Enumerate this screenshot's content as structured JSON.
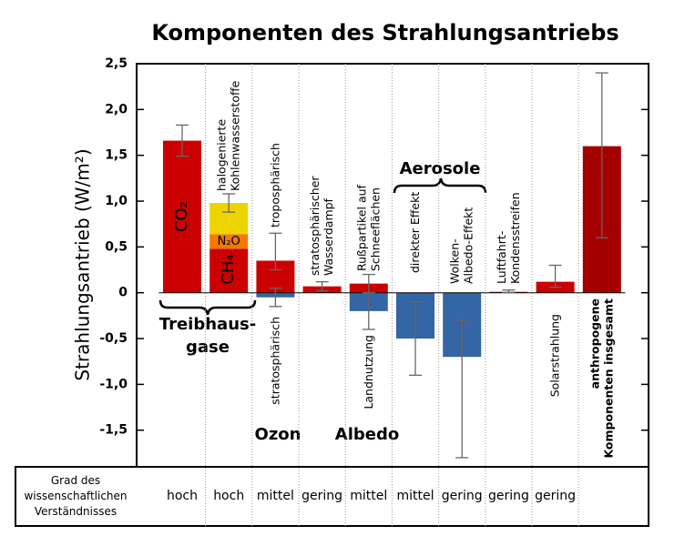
{
  "chart_data": {
    "type": "bar",
    "title": "Komponenten des Strahlungsantriebs",
    "y_label": "Strahlungsantrieb (W/m²)",
    "ylim": [
      -1.9,
      2.5
    ],
    "yticks": [
      {
        "value": 2.5,
        "label": "2,5"
      },
      {
        "value": 2.0,
        "label": "2,0"
      },
      {
        "value": 1.5,
        "label": "1,5"
      },
      {
        "value": 1.0,
        "label": "1,0"
      },
      {
        "value": 0.5,
        "label": "0,5"
      },
      0,
      {
        "value": -0.5,
        "label": "-0,5"
      },
      {
        "value": -1.0,
        "label": "-1,0"
      },
      {
        "value": -1.5,
        "label": "-1,5"
      }
    ],
    "understanding_header": [
      "Grad des",
      "wissenschaftlichen",
      "Verständnisses"
    ],
    "groups": {
      "greenhouse": [
        "Treibhaus-",
        "gase"
      ],
      "ozone": "Ozon",
      "albedo": "Albedo",
      "aerosols": "Aerosole"
    },
    "columns": [
      {
        "understanding": "hoch",
        "bars": [
          {
            "label": [
              "CO₂"
            ],
            "value": 1.66,
            "color": "#cc0000"
          }
        ],
        "errors": [
          [
            1.49,
            1.83
          ]
        ]
      },
      {
        "understanding": "hoch",
        "bars": [
          {
            "label": [
              "CH₄"
            ],
            "value": 0.48,
            "color": "#cc0000"
          },
          {
            "label": [
              "N₂O"
            ],
            "value": 0.16,
            "color": "#f57900"
          },
          {
            "label": [
              "halogenierte",
              "Kohlenwasserstoffe"
            ],
            "value": 0.34,
            "color": "#edd400"
          }
        ],
        "errors": [
          [
            0.88,
            1.08
          ]
        ]
      },
      {
        "understanding": "mittel",
        "bars": [
          {
            "label": [
              "troposphärisch"
            ],
            "value": 0.35,
            "color": "#cc0000"
          },
          {
            "label": [
              "stratosphärisch"
            ],
            "value": -0.05,
            "color": "#3465a4"
          }
        ],
        "errors": [
          [
            0.25,
            0.65
          ],
          [
            -0.15,
            0.05
          ]
        ]
      },
      {
        "understanding": "gering",
        "bars": [
          {
            "label": [
              "stratosphärischer",
              "Wasserdampf"
            ],
            "value": 0.07,
            "color": "#cc0000"
          }
        ],
        "errors": [
          [
            0.02,
            0.12
          ]
        ]
      },
      {
        "understanding": "mittel",
        "bars": [
          {
            "label": [
              "Rußpartikel auf",
              "Schneeflächen"
            ],
            "value": 0.1,
            "color": "#cc0000"
          },
          {
            "label": [
              "Landnutzung"
            ],
            "value": -0.2,
            "color": "#3465a4"
          }
        ],
        "errors": [
          [
            0.0,
            0.2
          ],
          [
            -0.4,
            0.0
          ]
        ]
      },
      {
        "understanding": "mittel",
        "bars": [
          {
            "label": [
              "direkter Effekt"
            ],
            "value": -0.5,
            "color": "#3465a4"
          }
        ],
        "errors": [
          [
            -0.9,
            -0.1
          ]
        ]
      },
      {
        "understanding": "gering",
        "bars": [
          {
            "label": [
              "Wolken-",
              "Albedo-Effekt"
            ],
            "value": -0.7,
            "color": "#3465a4"
          }
        ],
        "errors": [
          [
            -1.8,
            -0.3
          ]
        ]
      },
      {
        "understanding": "gering",
        "bars": [
          {
            "label": [
              "Luftfahrt-",
              "Kondensstreifen"
            ],
            "value": 0.01,
            "color": "#cc0000"
          }
        ],
        "errors": [
          [
            0.003,
            0.03
          ]
        ]
      },
      {
        "understanding": "gering",
        "bars": [
          {
            "label": [
              "Solarstrahlung"
            ],
            "value": 0.12,
            "color": "#cc0000"
          }
        ],
        "errors": [
          [
            0.06,
            0.3
          ]
        ]
      },
      {
        "understanding": null,
        "bars": [
          {
            "label": [
              "anthropogene",
              "Komponenten insgesamt"
            ],
            "value": 1.6,
            "color": "#a40000"
          }
        ],
        "errors": [
          [
            0.6,
            2.4
          ]
        ]
      }
    ]
  }
}
